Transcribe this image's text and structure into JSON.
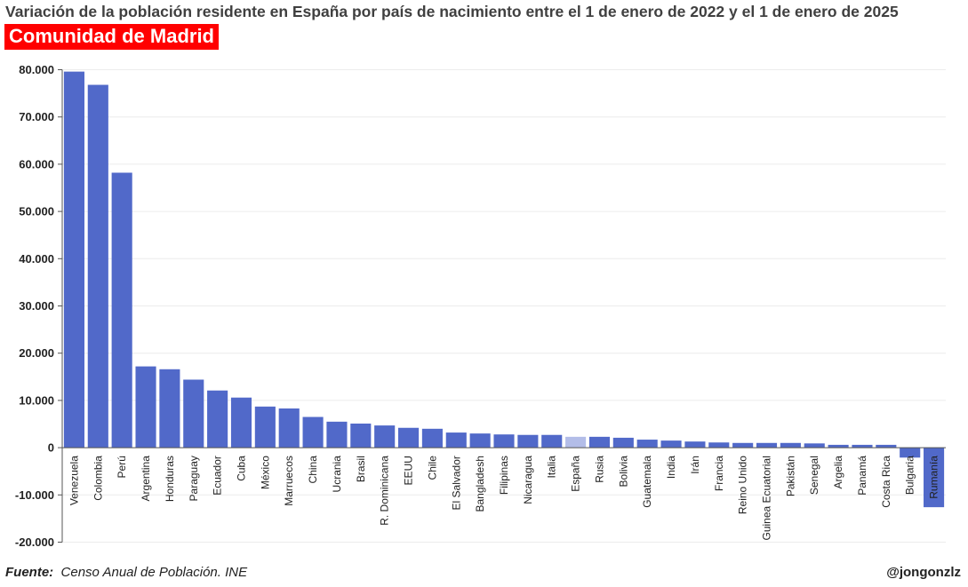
{
  "title": "Variación de la población residente en España por país de nacimiento entre el 1 de enero de 2022 y el 1 de enero de 2025",
  "subtitle": "Comunidad de Madrid",
  "footer": {
    "source_label": "Fuente:",
    "source_text": "Censo Anual de Población. INE",
    "handle": "@jongonzlz"
  },
  "colors": {
    "bar": "#5169c9",
    "highlight": "#b3bde8",
    "grid": "#ececec",
    "axis": "#555555"
  },
  "chart_data": {
    "type": "bar",
    "title": "Variación de la población residente en España por país de nacimiento entre el 1 de enero de 2022 y el 1 de enero de 2025",
    "xlabel": "",
    "ylabel": "",
    "ylim": [
      -20000,
      80000
    ],
    "yticks": [
      -20000,
      -10000,
      0,
      10000,
      20000,
      30000,
      40000,
      50000,
      60000,
      70000,
      80000
    ],
    "ytick_labels": [
      "-20.000",
      "-10.000",
      "0",
      "10.000",
      "20.000",
      "30.000",
      "40.000",
      "50.000",
      "60.000",
      "70.000",
      "80.000"
    ],
    "grid": true,
    "highlight": "España",
    "categories": [
      "Venezuela",
      "Colombia",
      "Perú",
      "Argentina",
      "Honduras",
      "Paraguay",
      "Ecuador",
      "Cuba",
      "México",
      "Marruecos",
      "China",
      "Ucrania",
      "Brasil",
      "R. Dominicana",
      "EEUU",
      "Chile",
      "El Salvador",
      "Bangladesh",
      "Filipinas",
      "Nicaragua",
      "Italia",
      "España",
      "Rusia",
      "Bolivia",
      "Guatemala",
      "India",
      "Irán",
      "Francia",
      "Reino Unido",
      "Guinea Ecuatorial",
      "Pakistán",
      "Senegal",
      "Argelia",
      "Panamá",
      "Costa Rica",
      "Bulgaria",
      "Rumanía"
    ],
    "values": [
      79600,
      76800,
      58200,
      17200,
      16600,
      14400,
      12100,
      10600,
      8700,
      8300,
      6500,
      5500,
      5100,
      4700,
      4200,
      4000,
      3200,
      3000,
      2800,
      2700,
      2700,
      2300,
      2300,
      2100,
      1700,
      1500,
      1300,
      1100,
      1000,
      1000,
      1000,
      900,
      600,
      600,
      600,
      -2100,
      -12600
    ]
  }
}
